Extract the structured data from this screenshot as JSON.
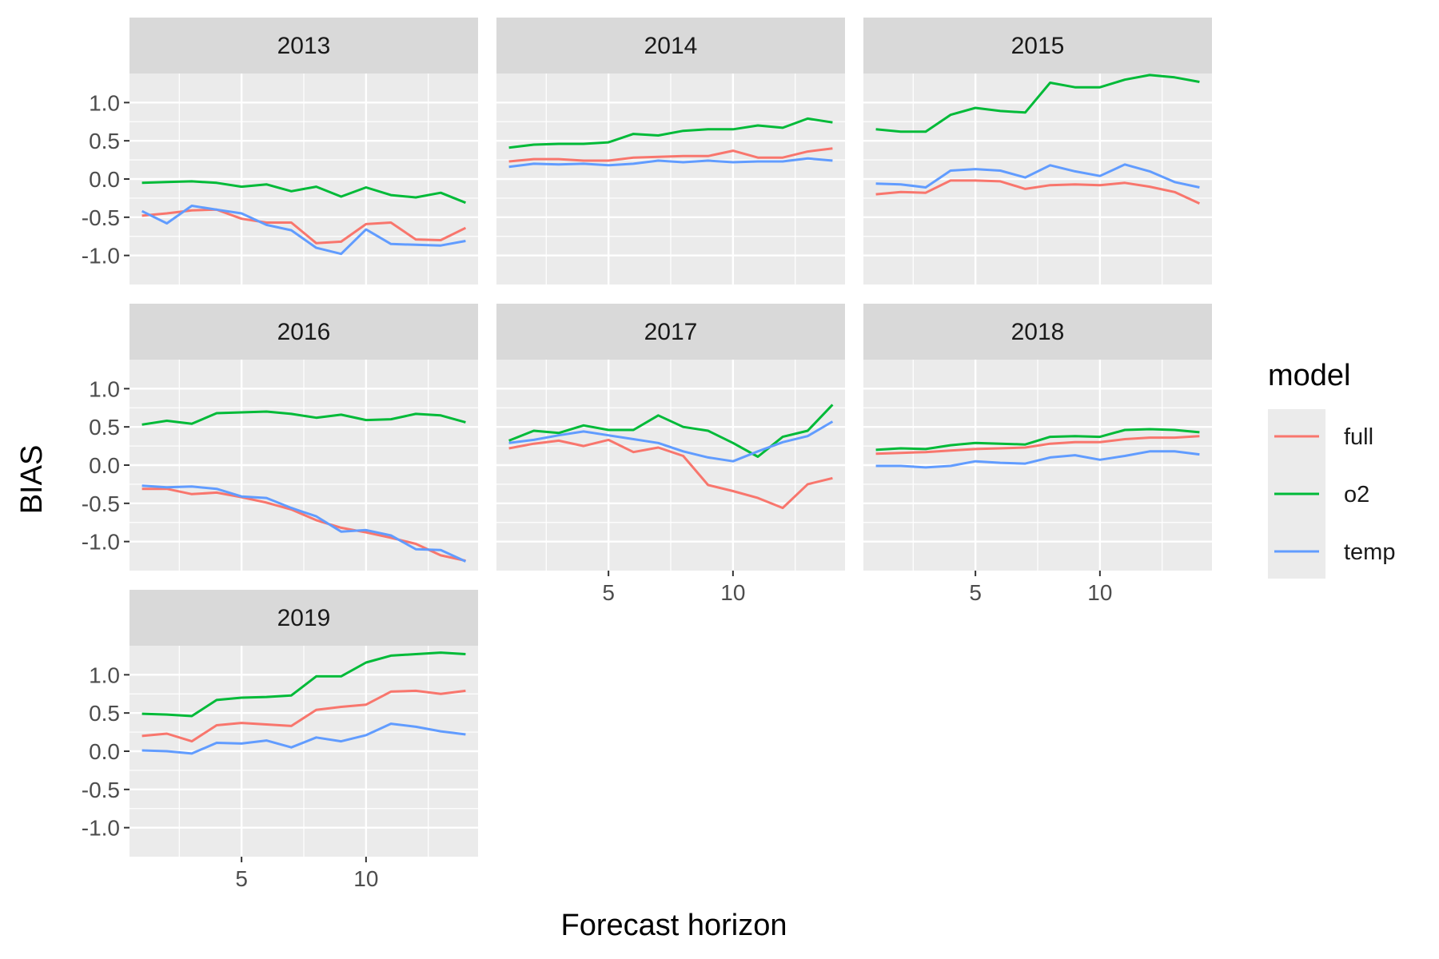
{
  "chart_data": {
    "type": "line",
    "layout": "facet-wrap",
    "xlabel": "Forecast horizon",
    "ylabel": "BIAS",
    "xlim": [
      0.5,
      14.5
    ],
    "ylim": [
      -1.38,
      1.38
    ],
    "x_ticks": [
      5,
      10
    ],
    "y_ticks": [
      -1.0,
      -0.5,
      0.0,
      0.5,
      1.0
    ],
    "y_tick_labels": [
      "-1.0",
      "-0.5",
      "0.0",
      "0.5",
      "1.0"
    ],
    "x": [
      1,
      2,
      3,
      4,
      5,
      6,
      7,
      8,
      9,
      10,
      11,
      12,
      13,
      14
    ],
    "legend": {
      "title": "model",
      "placement": "right",
      "entries": [
        {
          "key": "full",
          "label": "full",
          "color": "#F8766D"
        },
        {
          "key": "o2",
          "label": "o2",
          "color": "#00BA38"
        },
        {
          "key": "temp",
          "label": "temp",
          "color": "#619CFF"
        }
      ]
    },
    "panel_background": "#EBEBEB",
    "strip_background": "#D9D9D9",
    "grid": true,
    "panels": [
      {
        "title": "2013",
        "series": [
          {
            "model": "full",
            "values": [
              -0.48,
              -0.45,
              -0.41,
              -0.4,
              -0.52,
              -0.57,
              -0.57,
              -0.84,
              -0.82,
              -0.59,
              -0.57,
              -0.79,
              -0.8,
              -0.64
            ]
          },
          {
            "model": "o2",
            "values": [
              -0.05,
              -0.04,
              -0.03,
              -0.05,
              -0.1,
              -0.07,
              -0.16,
              -0.1,
              -0.23,
              -0.11,
              -0.21,
              -0.24,
              -0.18,
              -0.31
            ]
          },
          {
            "model": "temp",
            "values": [
              -0.42,
              -0.58,
              -0.35,
              -0.4,
              -0.45,
              -0.6,
              -0.67,
              -0.9,
              -0.98,
              -0.66,
              -0.85,
              -0.86,
              -0.87,
              -0.81
            ]
          }
        ]
      },
      {
        "title": "2014",
        "series": [
          {
            "model": "full",
            "values": [
              0.23,
              0.26,
              0.26,
              0.24,
              0.24,
              0.28,
              0.29,
              0.3,
              0.3,
              0.37,
              0.28,
              0.28,
              0.36,
              0.4
            ]
          },
          {
            "model": "o2",
            "values": [
              0.41,
              0.45,
              0.46,
              0.46,
              0.48,
              0.59,
              0.57,
              0.63,
              0.65,
              0.65,
              0.7,
              0.67,
              0.79,
              0.74
            ]
          },
          {
            "model": "temp",
            "values": [
              0.16,
              0.2,
              0.19,
              0.2,
              0.18,
              0.2,
              0.24,
              0.22,
              0.24,
              0.22,
              0.23,
              0.23,
              0.27,
              0.24
            ]
          }
        ]
      },
      {
        "title": "2015",
        "series": [
          {
            "model": "full",
            "values": [
              -0.2,
              -0.17,
              -0.18,
              -0.02,
              -0.02,
              -0.03,
              -0.13,
              -0.08,
              -0.07,
              -0.08,
              -0.05,
              -0.1,
              -0.17,
              -0.32
            ]
          },
          {
            "model": "o2",
            "values": [
              0.65,
              0.62,
              0.62,
              0.84,
              0.93,
              0.89,
              0.87,
              1.26,
              1.2,
              1.2,
              1.3,
              1.36,
              1.33,
              1.27
            ]
          },
          {
            "model": "temp",
            "values": [
              -0.06,
              -0.07,
              -0.11,
              0.11,
              0.13,
              0.11,
              0.02,
              0.18,
              0.1,
              0.04,
              0.19,
              0.1,
              -0.04,
              -0.11
            ]
          }
        ]
      },
      {
        "title": "2016",
        "series": [
          {
            "model": "full",
            "values": [
              -0.31,
              -0.31,
              -0.38,
              -0.36,
              -0.42,
              -0.49,
              -0.58,
              -0.72,
              -0.82,
              -0.88,
              -0.95,
              -1.03,
              -1.18,
              -1.25
            ]
          },
          {
            "model": "o2",
            "values": [
              0.53,
              0.58,
              0.54,
              0.68,
              0.69,
              0.7,
              0.67,
              0.62,
              0.66,
              0.59,
              0.6,
              0.67,
              0.65,
              0.56
            ]
          },
          {
            "model": "temp",
            "values": [
              -0.27,
              -0.29,
              -0.28,
              -0.31,
              -0.41,
              -0.43,
              -0.56,
              -0.67,
              -0.87,
              -0.85,
              -0.92,
              -1.1,
              -1.11,
              -1.26
            ]
          }
        ]
      },
      {
        "title": "2017",
        "series": [
          {
            "model": "full",
            "values": [
              0.22,
              0.28,
              0.32,
              0.25,
              0.33,
              0.17,
              0.23,
              0.12,
              -0.26,
              -0.34,
              -0.43,
              -0.56,
              -0.25,
              -0.17
            ]
          },
          {
            "model": "o2",
            "values": [
              0.32,
              0.45,
              0.42,
              0.52,
              0.46,
              0.46,
              0.65,
              0.5,
              0.45,
              0.29,
              0.11,
              0.37,
              0.45,
              0.79
            ]
          },
          {
            "model": "temp",
            "values": [
              0.29,
              0.33,
              0.39,
              0.44,
              0.39,
              0.34,
              0.29,
              0.18,
              0.1,
              0.05,
              0.18,
              0.3,
              0.38,
              0.57
            ]
          }
        ]
      },
      {
        "title": "2018",
        "series": [
          {
            "model": "full",
            "values": [
              0.15,
              0.16,
              0.17,
              0.19,
              0.21,
              0.22,
              0.23,
              0.28,
              0.3,
              0.3,
              0.34,
              0.36,
              0.36,
              0.38
            ]
          },
          {
            "model": "o2",
            "values": [
              0.2,
              0.22,
              0.21,
              0.26,
              0.29,
              0.28,
              0.27,
              0.37,
              0.38,
              0.37,
              0.46,
              0.47,
              0.46,
              0.43
            ]
          },
          {
            "model": "temp",
            "values": [
              -0.01,
              -0.01,
              -0.03,
              -0.01,
              0.05,
              0.03,
              0.02,
              0.1,
              0.13,
              0.07,
              0.12,
              0.18,
              0.18,
              0.14
            ]
          }
        ]
      },
      {
        "title": "2019",
        "series": [
          {
            "model": "full",
            "values": [
              0.2,
              0.23,
              0.13,
              0.34,
              0.37,
              0.35,
              0.33,
              0.54,
              0.58,
              0.61,
              0.78,
              0.79,
              0.75,
              0.79
            ]
          },
          {
            "model": "o2",
            "values": [
              0.49,
              0.48,
              0.46,
              0.67,
              0.7,
              0.71,
              0.73,
              0.98,
              0.98,
              1.16,
              1.25,
              1.27,
              1.29,
              1.27
            ]
          },
          {
            "model": "temp",
            "values": [
              0.01,
              0.0,
              -0.03,
              0.11,
              0.1,
              0.14,
              0.05,
              0.18,
              0.13,
              0.21,
              0.36,
              0.32,
              0.26,
              0.22
            ]
          }
        ]
      }
    ]
  }
}
